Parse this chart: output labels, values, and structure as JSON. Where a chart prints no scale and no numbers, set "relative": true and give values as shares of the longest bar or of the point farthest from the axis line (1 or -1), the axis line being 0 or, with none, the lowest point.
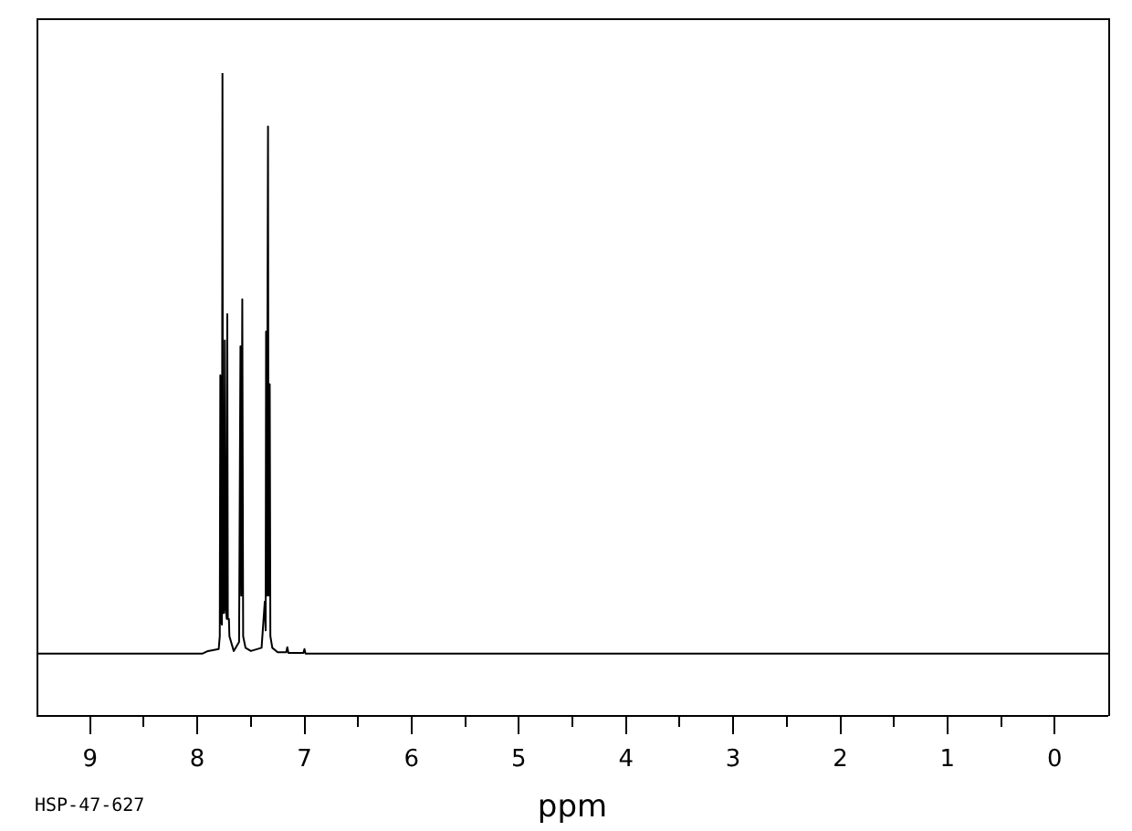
{
  "chart_data": {
    "type": "line",
    "relative": true,
    "xlabel": "ppm",
    "annotations": [
      "HSP-47-627"
    ],
    "color": "#000000",
    "tick_labels": "x",
    "xlim": [
      9.5,
      -0.5
    ],
    "xticks": [
      9,
      {
        "value": 8.5,
        "label": null
      },
      8,
      {
        "value": 7.5,
        "label": null
      },
      7,
      {
        "value": 6.5,
        "label": null
      },
      6,
      {
        "value": 5.5,
        "label": null
      },
      5,
      {
        "value": 4.5,
        "label": null
      },
      4,
      {
        "value": 3.5,
        "label": null
      },
      3,
      {
        "value": 2.5,
        "label": null
      },
      2,
      {
        "value": 1.5,
        "label": null
      },
      1,
      {
        "value": 0.5,
        "label": null
      },
      0
    ],
    "x": [
      9.5,
      7.95,
      7.9,
      7.8,
      7.79,
      7.785,
      7.78,
      7.77,
      7.765,
      7.76,
      7.75,
      7.743,
      7.735,
      7.725,
      7.72,
      7.715,
      7.705,
      7.7,
      7.66,
      7.61,
      7.597,
      7.59,
      7.58,
      7.572,
      7.55,
      7.5,
      7.4,
      7.37,
      7.362,
      7.358,
      7.352,
      7.34,
      7.335,
      7.324,
      7.318,
      7.3,
      7.25,
      7.17,
      7.16,
      7.15,
      7.01,
      7.0,
      6.99,
      -0.5
    ],
    "values": [
      0.097,
      0.097,
      0.101,
      0.104,
      0.124,
      0.53,
      0.151,
      0.142,
      1,
      0.16,
      0.16,
      0.584,
      0.169,
      0.151,
      0.625,
      0.151,
      0.151,
      0.124,
      0.101,
      0.115,
      0.575,
      0.187,
      0.648,
      0.124,
      0.106,
      0.101,
      0.106,
      0.178,
      0.133,
      0.598,
      0.187,
      0.917,
      0.187,
      0.516,
      0.124,
      0.106,
      0.099,
      0.099,
      0.107,
      0.098,
      0.098,
      0.104,
      0.097,
      0.097
    ]
  }
}
